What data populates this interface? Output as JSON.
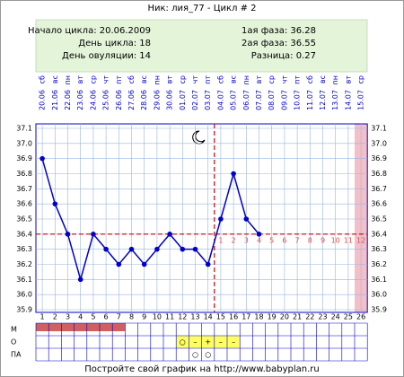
{
  "chart_data": {
    "type": "line",
    "title": "Ник: лия_77 - Цикл # 2",
    "info_left": [
      "Начало цикла: 20.06.2009",
      "День цикла: 18",
      "День овуляции: 14"
    ],
    "info_right": [
      "1ая фаза: 36.28",
      "2ая фаза: 36.55",
      "Разница: 0.27"
    ],
    "weekdays": [
      "сб",
      "вс",
      "пн",
      "вт",
      "ср",
      "чт",
      "пт",
      "сб",
      "вс",
      "пн",
      "вт",
      "ср",
      "чт",
      "пт",
      "сб",
      "вс",
      "пн",
      "вт",
      "ср",
      "чт",
      "пт",
      "сб",
      "вс",
      "пн",
      "вт",
      "ср"
    ],
    "dates": [
      "20.06",
      "21.06",
      "22.06",
      "23.06",
      "24.06",
      "25.06",
      "26.06",
      "27.06",
      "28.06",
      "29.06",
      "30.06",
      "01.07",
      "02.07",
      "03.07",
      "04.07",
      "05.07",
      "06.07",
      "07.07",
      "08.07",
      "09.07",
      "10.07",
      "11.07",
      "12.07",
      "13.07",
      "14.07",
      "15.07"
    ],
    "categories": [
      1,
      2,
      3,
      4,
      5,
      6,
      7,
      8,
      9,
      10,
      11,
      12,
      13,
      14,
      15,
      16,
      17,
      18,
      19,
      20,
      21,
      22,
      23,
      24,
      25,
      26
    ],
    "values": [
      36.9,
      36.6,
      36.4,
      36.1,
      36.4,
      36.3,
      36.2,
      36.3,
      36.2,
      36.3,
      36.4,
      36.3,
      36.3,
      36.2,
      36.5,
      36.8,
      36.5,
      36.4,
      null,
      null,
      null,
      null,
      null,
      null,
      null,
      null
    ],
    "color": "#0000cc",
    "ylim": [
      35.9,
      37.1
    ],
    "yticks": [
      37.1,
      {
        "value": 37,
        "label": "37.0"
      },
      36.9,
      36.8,
      36.7,
      36.6,
      36.5,
      36.4,
      36.3,
      36.2,
      36.1,
      {
        "value": 36,
        "label": "36.0"
      },
      35.9
    ],
    "coverline": 36.4,
    "ovulation_day": 14,
    "phase2_days": [
      1,
      2,
      3,
      4,
      5,
      6,
      7,
      8,
      9,
      10,
      11,
      12
    ],
    "highlight_day": 26,
    "row_labels": [
      "М",
      "О",
      "ПА"
    ],
    "menses": [
      1,
      7
    ],
    "o_row": [
      null,
      null,
      null,
      null,
      null,
      null,
      null,
      null,
      null,
      null,
      null,
      "○",
      "–",
      "+",
      "–",
      "–",
      null,
      null,
      null,
      null,
      null,
      null,
      null,
      null,
      null,
      null
    ],
    "pa_row": [
      null,
      null,
      null,
      null,
      null,
      null,
      null,
      null,
      null,
      null,
      null,
      null,
      "○",
      "○",
      null,
      null,
      null,
      null,
      null,
      null,
      null,
      null,
      null,
      null,
      null,
      null
    ],
    "footer": "Постройте свой график на http://www.babyplan.ru"
  }
}
